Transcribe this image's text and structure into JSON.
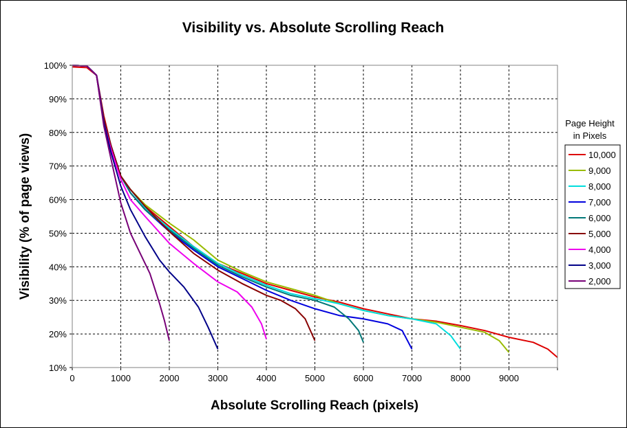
{
  "chart_data": {
    "type": "line",
    "title": "Visibility vs. Absolute Scrolling Reach",
    "xlabel": "Absolute Scrolling Reach (pixels)",
    "ylabel": "Visibility (% of page views)",
    "xlim": [
      0,
      10000
    ],
    "ylim": [
      10,
      100
    ],
    "x_ticks": [
      0,
      1000,
      2000,
      3000,
      4000,
      5000,
      6000,
      7000,
      8000,
      9000
    ],
    "x_tick_labels": [
      "0",
      "1000",
      "2000",
      "3000",
      "4000",
      "5000",
      "6000",
      "7000",
      "8000",
      "9000"
    ],
    "y_ticks": [
      10,
      20,
      30,
      40,
      50,
      60,
      70,
      80,
      90,
      100
    ],
    "y_tick_labels": [
      "10%",
      "20%",
      "30%",
      "40%",
      "50%",
      "60%",
      "70%",
      "80%",
      "90%",
      "100%"
    ],
    "grid": "dashed",
    "legend": {
      "title_line1": "Page Height",
      "title_line2": "in Pixels",
      "placement": "right"
    },
    "series": [
      {
        "name": "10,000",
        "color": "#dd0000",
        "points": [
          [
            0,
            99.5
          ],
          [
            300,
            99.3
          ],
          [
            500,
            97
          ],
          [
            650,
            85
          ],
          [
            800,
            76
          ],
          [
            1000,
            67
          ],
          [
            1200,
            63
          ],
          [
            1500,
            58
          ],
          [
            2000,
            52
          ],
          [
            2500,
            46
          ],
          [
            3000,
            41
          ],
          [
            3500,
            38
          ],
          [
            4000,
            35
          ],
          [
            4500,
            33
          ],
          [
            5000,
            31
          ],
          [
            5500,
            29.5
          ],
          [
            6000,
            27.5
          ],
          [
            6500,
            26
          ],
          [
            7000,
            24.5
          ],
          [
            7500,
            23.8
          ],
          [
            8000,
            22.5
          ],
          [
            8500,
            21
          ],
          [
            9000,
            19
          ],
          [
            9500,
            17.5
          ],
          [
            9800,
            15.5
          ],
          [
            10000,
            13
          ]
        ]
      },
      {
        "name": "9,000",
        "color": "#99bb00",
        "points": [
          [
            0,
            100
          ],
          [
            300,
            99.8
          ],
          [
            500,
            97
          ],
          [
            650,
            84
          ],
          [
            800,
            75
          ],
          [
            1000,
            67
          ],
          [
            1200,
            63
          ],
          [
            1500,
            58.5
          ],
          [
            2000,
            53
          ],
          [
            2500,
            48
          ],
          [
            3000,
            42
          ],
          [
            3500,
            38.5
          ],
          [
            4000,
            35.5
          ],
          [
            4500,
            33.5
          ],
          [
            5000,
            31.5
          ],
          [
            5500,
            29
          ],
          [
            6000,
            27
          ],
          [
            6500,
            25.5
          ],
          [
            7000,
            24.5
          ],
          [
            7500,
            23.5
          ],
          [
            8000,
            22
          ],
          [
            8500,
            20.5
          ],
          [
            8800,
            18
          ],
          [
            9000,
            14.5
          ]
        ]
      },
      {
        "name": "8,000",
        "color": "#00dddd",
        "points": [
          [
            0,
            100
          ],
          [
            300,
            99.8
          ],
          [
            500,
            97
          ],
          [
            650,
            84
          ],
          [
            800,
            76
          ],
          [
            1000,
            67
          ],
          [
            1200,
            63
          ],
          [
            1500,
            57.5
          ],
          [
            2000,
            51.5
          ],
          [
            2500,
            46
          ],
          [
            3000,
            41
          ],
          [
            3500,
            37.5
          ],
          [
            4000,
            34.5
          ],
          [
            4500,
            32
          ],
          [
            5000,
            30.5
          ],
          [
            5500,
            29
          ],
          [
            6000,
            27
          ],
          [
            6500,
            25.5
          ],
          [
            7000,
            24.5
          ],
          [
            7500,
            23
          ],
          [
            7800,
            19.5
          ],
          [
            8000,
            15.5
          ]
        ]
      },
      {
        "name": "7,000",
        "color": "#0000dd",
        "points": [
          [
            0,
            100
          ],
          [
            300,
            99.8
          ],
          [
            500,
            97
          ],
          [
            650,
            84
          ],
          [
            800,
            76
          ],
          [
            1000,
            67
          ],
          [
            1200,
            62
          ],
          [
            1500,
            57
          ],
          [
            2000,
            50.5
          ],
          [
            2500,
            45
          ],
          [
            3000,
            40
          ],
          [
            3500,
            36.5
          ],
          [
            4000,
            33
          ],
          [
            4500,
            30
          ],
          [
            5000,
            27.5
          ],
          [
            5500,
            25.5
          ],
          [
            6000,
            24.5
          ],
          [
            6500,
            23
          ],
          [
            6800,
            21
          ],
          [
            7000,
            15.5
          ]
        ]
      },
      {
        "name": "6,000",
        "color": "#007777",
        "points": [
          [
            0,
            100
          ],
          [
            300,
            99.8
          ],
          [
            500,
            97
          ],
          [
            650,
            84
          ],
          [
            800,
            76
          ],
          [
            1000,
            67
          ],
          [
            1200,
            62
          ],
          [
            1500,
            57
          ],
          [
            2000,
            51
          ],
          [
            2500,
            45.5
          ],
          [
            3000,
            40.5
          ],
          [
            3500,
            37
          ],
          [
            4000,
            34
          ],
          [
            4500,
            31.5
          ],
          [
            5000,
            30
          ],
          [
            5400,
            28
          ],
          [
            5700,
            24.5
          ],
          [
            5900,
            21
          ],
          [
            6000,
            17.5
          ]
        ]
      },
      {
        "name": "5,000",
        "color": "#880000",
        "points": [
          [
            0,
            100
          ],
          [
            300,
            99.8
          ],
          [
            500,
            97
          ],
          [
            650,
            84
          ],
          [
            800,
            76
          ],
          [
            1000,
            67
          ],
          [
            1200,
            63
          ],
          [
            1500,
            58
          ],
          [
            2000,
            50.5
          ],
          [
            2500,
            44
          ],
          [
            3000,
            39
          ],
          [
            3500,
            35
          ],
          [
            4000,
            31.5
          ],
          [
            4300,
            30
          ],
          [
            4600,
            27.5
          ],
          [
            4800,
            24.5
          ],
          [
            5000,
            18
          ]
        ]
      },
      {
        "name": "4,000",
        "color": "#ee00ee",
        "points": [
          [
            0,
            100
          ],
          [
            300,
            99.8
          ],
          [
            500,
            97
          ],
          [
            650,
            83
          ],
          [
            800,
            75
          ],
          [
            1000,
            66
          ],
          [
            1200,
            60
          ],
          [
            1500,
            55
          ],
          [
            2000,
            47
          ],
          [
            2500,
            41
          ],
          [
            3000,
            35.5
          ],
          [
            3400,
            32.5
          ],
          [
            3700,
            28
          ],
          [
            3900,
            23
          ],
          [
            4000,
            18.5
          ]
        ]
      },
      {
        "name": "3,000",
        "color": "#000088",
        "points": [
          [
            0,
            100
          ],
          [
            300,
            99.8
          ],
          [
            500,
            97
          ],
          [
            650,
            83
          ],
          [
            800,
            74
          ],
          [
            1000,
            64
          ],
          [
            1200,
            57
          ],
          [
            1500,
            49
          ],
          [
            1800,
            42
          ],
          [
            2000,
            38.5
          ],
          [
            2300,
            34
          ],
          [
            2600,
            28
          ],
          [
            2800,
            22
          ],
          [
            3000,
            15.5
          ]
        ]
      },
      {
        "name": "2,000",
        "color": "#770077",
        "points": [
          [
            0,
            100
          ],
          [
            300,
            99.8
          ],
          [
            500,
            97
          ],
          [
            650,
            82
          ],
          [
            800,
            72
          ],
          [
            1000,
            59
          ],
          [
            1200,
            50
          ],
          [
            1400,
            44
          ],
          [
            1600,
            38
          ],
          [
            1800,
            29
          ],
          [
            1900,
            24
          ],
          [
            2000,
            18
          ]
        ]
      }
    ]
  }
}
